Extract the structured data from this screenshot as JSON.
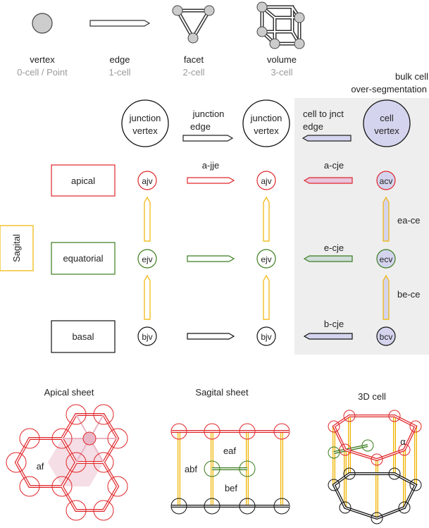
{
  "colors": {
    "apical": "#e0262a",
    "equatorial": "#3a7d1e",
    "basal": "#111111",
    "sagital": "#f0b400",
    "cell_fill": "#d4d4ee",
    "vertex_fill": "#cccccc",
    "panel_bg": "#eeeeee",
    "facet_fill": "#e9b6c6"
  },
  "top_legend": {
    "vertex": {
      "name": "vertex",
      "sub": "0-cell / Point"
    },
    "edge": {
      "name": "edge",
      "sub": "1-cell"
    },
    "facet": {
      "name": "facet",
      "sub": "2-cell"
    },
    "volume": {
      "name": "volume",
      "sub": "3-cell"
    }
  },
  "bulk_title": [
    "bulk cell",
    "over-segmentation"
  ],
  "headers": {
    "junction_vertex": [
      "junction",
      "vertex"
    ],
    "junction_edge": [
      "junction",
      "edge"
    ],
    "cell_to_jnct_edge": [
      "cell to jnct",
      "edge"
    ],
    "cell_vertex": [
      "cell",
      "vertex"
    ]
  },
  "rows": {
    "apical": {
      "label": "apical",
      "jv": "ajv",
      "edge": "a-jje",
      "cje": "a-cje",
      "cv": "acv"
    },
    "equatorial": {
      "label": "equatorial",
      "jv": "ejv",
      "cje": "e-cje",
      "cv": "ecv"
    },
    "basal": {
      "label": "basal",
      "jv": "bjv",
      "cje": "b-cje",
      "cv": "bcv"
    }
  },
  "sagital_label": "Sagital",
  "cell_edges": {
    "upper": "ea-ce",
    "lower": "be-ce"
  },
  "sheets": {
    "apical": {
      "title": "Apical sheet",
      "label": "af"
    },
    "sagital": {
      "title": "Sagital sheet",
      "labels": [
        "eaf",
        "abf",
        "bef"
      ]
    },
    "cell3d": {
      "title": "3D cell",
      "label": "α"
    }
  }
}
